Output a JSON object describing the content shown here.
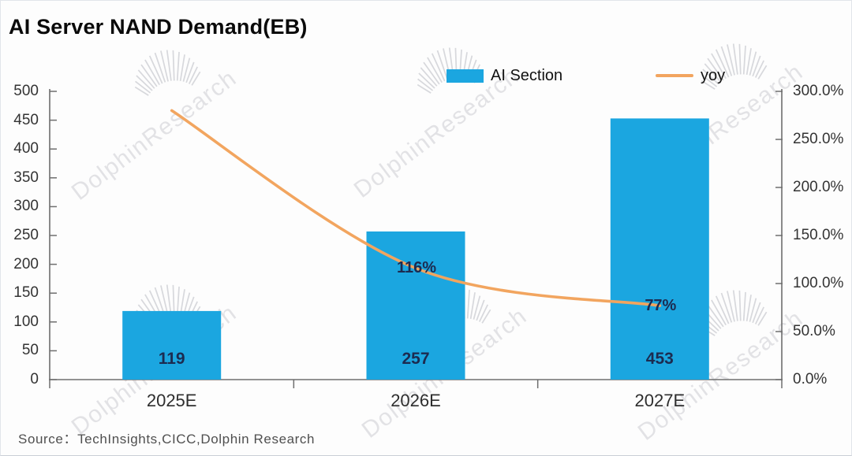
{
  "title": "AI Server NAND Demand(EB)",
  "legend": {
    "ai_section": "AI Section",
    "yoy": "yoy"
  },
  "source": "Source：TechInsights,CICC,Dolphin Research",
  "watermark": "DolphinResearch",
  "colors": {
    "bar": "#1BA6E0",
    "line": "#F2A55F",
    "value_label": "#1C2B50"
  },
  "chart_data": {
    "type": "bar",
    "subtype": "combo bar + line, dual y-axis",
    "title": "AI Server NAND Demand(EB)",
    "categories": [
      "2025E",
      "2026E",
      "2027E"
    ],
    "series": [
      {
        "name": "AI Section",
        "type": "bar",
        "axis": "left",
        "values": [
          119,
          257,
          453
        ],
        "labels": [
          "119",
          "257",
          "453"
        ],
        "color": "#1BA6E0"
      },
      {
        "name": "yoy",
        "type": "line",
        "axis": "right",
        "values": [
          280,
          116,
          77
        ],
        "labels": [
          "",
          "116%",
          "77%"
        ],
        "color": "#F2A55F"
      }
    ],
    "left_axis": {
      "min": 0,
      "max": 500,
      "step": 50,
      "tick_labels": [
        "500",
        "450",
        "400",
        "350",
        "300",
        "250",
        "200",
        "150",
        "100",
        "50",
        "0"
      ]
    },
    "right_axis": {
      "min": 0,
      "max": 300,
      "step": 50,
      "tick_labels": [
        "300.0%",
        "250.0%",
        "200.0%",
        "150.0%",
        "100.0%",
        "50.0%",
        "0.0%"
      ]
    },
    "grid": false,
    "legend_position": "top"
  }
}
